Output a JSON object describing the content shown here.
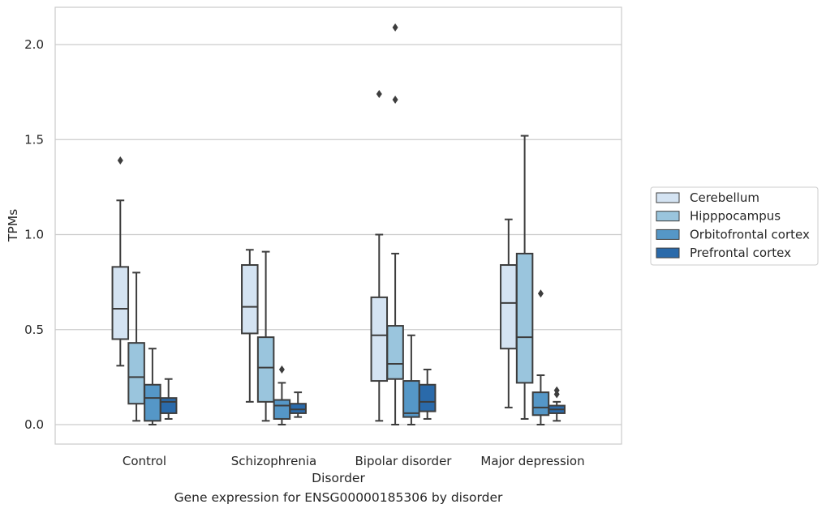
{
  "caption": "Gene expression for ENSG00000185306 by disorder",
  "chart_data": {
    "type": "box",
    "xlabel": "Disorder",
    "ylabel": "TPMs",
    "ylim": [
      -0.1,
      2.2
    ],
    "yticks": [
      0.0,
      0.5,
      1.0,
      1.5,
      2.0
    ],
    "ytick_labels": [
      "0.0",
      "0.5",
      "1.0",
      "1.5",
      "2.0"
    ],
    "grid": "horizontal",
    "legend_position": "right",
    "categories": [
      "Control",
      "Schizophrenia",
      "Bipolar disorder",
      "Major depression"
    ],
    "series": [
      {
        "name": "Cerebellum",
        "color": "#d4e3f2",
        "boxes": [
          {
            "whislo": 0.31,
            "q1": 0.45,
            "med": 0.61,
            "q3": 0.83,
            "whishi": 1.18,
            "fliers": [
              1.39
            ]
          },
          {
            "whislo": 0.12,
            "q1": 0.48,
            "med": 0.62,
            "q3": 0.84,
            "whishi": 0.92,
            "fliers": []
          },
          {
            "whislo": 0.02,
            "q1": 0.23,
            "med": 0.47,
            "q3": 0.67,
            "whishi": 1.0,
            "fliers": [
              1.74
            ]
          },
          {
            "whislo": 0.09,
            "q1": 0.4,
            "med": 0.64,
            "q3": 0.84,
            "whishi": 1.08,
            "fliers": []
          }
        ]
      },
      {
        "name": "Hipppocampus",
        "color": "#9ac5dd",
        "boxes": [
          {
            "whislo": 0.02,
            "q1": 0.11,
            "med": 0.25,
            "q3": 0.43,
            "whishi": 0.8,
            "fliers": []
          },
          {
            "whislo": 0.02,
            "q1": 0.12,
            "med": 0.3,
            "q3": 0.46,
            "whishi": 0.91,
            "fliers": []
          },
          {
            "whislo": 0.0,
            "q1": 0.24,
            "med": 0.32,
            "q3": 0.52,
            "whishi": 0.9,
            "fliers": [
              1.71,
              2.09
            ]
          },
          {
            "whislo": 0.03,
            "q1": 0.22,
            "med": 0.46,
            "q3": 0.9,
            "whishi": 1.52,
            "fliers": []
          }
        ]
      },
      {
        "name": "Orbitofrontal cortex",
        "color": "#5597c7",
        "boxes": [
          {
            "whislo": 0.0,
            "q1": 0.02,
            "med": 0.14,
            "q3": 0.21,
            "whishi": 0.4,
            "fliers": []
          },
          {
            "whislo": 0.0,
            "q1": 0.03,
            "med": 0.1,
            "q3": 0.13,
            "whishi": 0.22,
            "fliers": [
              0.29
            ]
          },
          {
            "whislo": 0.0,
            "q1": 0.04,
            "med": 0.06,
            "q3": 0.23,
            "whishi": 0.47,
            "fliers": []
          },
          {
            "whislo": 0.0,
            "q1": 0.05,
            "med": 0.09,
            "q3": 0.17,
            "whishi": 0.26,
            "fliers": [
              0.69
            ]
          }
        ]
      },
      {
        "name": "Prefrontal cortex",
        "color": "#2a6aaa",
        "boxes": [
          {
            "whislo": 0.03,
            "q1": 0.06,
            "med": 0.12,
            "q3": 0.14,
            "whishi": 0.24,
            "fliers": []
          },
          {
            "whislo": 0.04,
            "q1": 0.06,
            "med": 0.08,
            "q3": 0.11,
            "whishi": 0.17,
            "fliers": []
          },
          {
            "whislo": 0.03,
            "q1": 0.07,
            "med": 0.12,
            "q3": 0.21,
            "whishi": 0.29,
            "fliers": []
          },
          {
            "whislo": 0.02,
            "q1": 0.06,
            "med": 0.08,
            "q3": 0.1,
            "whishi": 0.12,
            "fliers": [
              0.16,
              0.18
            ]
          }
        ]
      }
    ]
  }
}
